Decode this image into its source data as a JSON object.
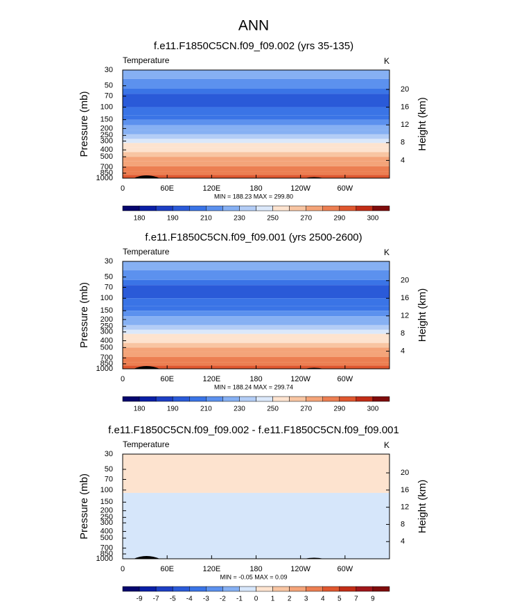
{
  "title": "ANN",
  "chart_data": [
    {
      "type": "contour",
      "title": "f.e11.F1850C5CN.f09_f09.002 (yrs 35-135)",
      "left_label": "Temperature",
      "right_label": "K",
      "ylabel": "Pressure (mb)",
      "y2label": "Height (km)",
      "log_y": true,
      "ylim": [
        1000,
        30
      ],
      "yticks": [
        30,
        50,
        70,
        100,
        150,
        200,
        250,
        300,
        400,
        500,
        700,
        850,
        1000
      ],
      "y2ticks": [
        4,
        8,
        12,
        16,
        20
      ],
      "xlim": [
        0,
        360
      ],
      "xticks": [
        0,
        {
          "value": 60,
          "label": "60E"
        },
        {
          "value": 120,
          "label": "120E"
        },
        180,
        {
          "value": 240,
          "label": "120W"
        },
        {
          "value": 300,
          "label": "60W"
        }
      ],
      "stats": "MIN = 188.23  MAX = 299.80",
      "pressure_edges": [
        30,
        40,
        55,
        65,
        100,
        130,
        150,
        180,
        210,
        240,
        280,
        320,
        370,
        430,
        500,
        580,
        680,
        800,
        900,
        1000
      ],
      "values": [
        226,
        218,
        205,
        199,
        203,
        209,
        216,
        222,
        228,
        234,
        243,
        251,
        258,
        264,
        270,
        276,
        282,
        287,
        292
      ],
      "levels": [
        180,
        185,
        190,
        200,
        210,
        220,
        230,
        240,
        250,
        260,
        270,
        280,
        290,
        295,
        300
      ],
      "tick_levels": [
        180,
        190,
        210,
        230,
        250,
        270,
        290,
        300
      ],
      "colors": [
        "#06066e",
        "#0a1fa6",
        "#1d3fc4",
        "#2a5ad8",
        "#3a74e6",
        "#5c91ee",
        "#86b0f3",
        "#b3cdf6",
        "#dbe8fa",
        "#fde3cf",
        "#f8c5a2",
        "#f4a479",
        "#ec7f52",
        "#df572f",
        "#c22d17",
        "#7f0c0c"
      ]
    },
    {
      "type": "contour",
      "title": "f.e11.F1850C5CN.f09_f09.001 (yrs 2500-2600)",
      "left_label": "Temperature",
      "right_label": "K",
      "ylabel": "Pressure (mb)",
      "y2label": "Height (km)",
      "log_y": true,
      "ylim": [
        1000,
        30
      ],
      "yticks": [
        30,
        50,
        70,
        100,
        150,
        200,
        250,
        300,
        400,
        500,
        700,
        850,
        1000
      ],
      "y2ticks": [
        4,
        8,
        12,
        16,
        20
      ],
      "xlim": [
        0,
        360
      ],
      "xticks": [
        0,
        {
          "value": 60,
          "label": "60E"
        },
        {
          "value": 120,
          "label": "120E"
        },
        180,
        {
          "value": 240,
          "label": "120W"
        },
        {
          "value": 300,
          "label": "60W"
        }
      ],
      "stats": "MIN = 188.24  MAX = 299.74",
      "pressure_edges": [
        30,
        40,
        55,
        65,
        100,
        130,
        150,
        180,
        210,
        240,
        280,
        320,
        370,
        430,
        500,
        580,
        680,
        800,
        900,
        1000
      ],
      "values": [
        226,
        218,
        205,
        199,
        203,
        209,
        216,
        222,
        228,
        234,
        243,
        251,
        258,
        264,
        270,
        276,
        282,
        287,
        292
      ],
      "levels": [
        180,
        185,
        190,
        200,
        210,
        220,
        230,
        240,
        250,
        260,
        270,
        280,
        290,
        295,
        300
      ],
      "tick_levels": [
        180,
        190,
        210,
        230,
        250,
        270,
        290,
        300
      ],
      "colors": [
        "#06066e",
        "#0a1fa6",
        "#1d3fc4",
        "#2a5ad8",
        "#3a74e6",
        "#5c91ee",
        "#86b0f3",
        "#b3cdf6",
        "#dbe8fa",
        "#fde3cf",
        "#f8c5a2",
        "#f4a479",
        "#ec7f52",
        "#df572f",
        "#c22d17",
        "#7f0c0c"
      ]
    },
    {
      "type": "contour",
      "title": "f.e11.F1850C5CN.f09_f09.002 - f.e11.F1850C5CN.f09_f09.001",
      "left_label": "Temperature",
      "right_label": "K",
      "ylabel": "Pressure (mb)",
      "y2label": "Height (km)",
      "log_y": true,
      "ylim": [
        1000,
        30
      ],
      "yticks": [
        30,
        50,
        70,
        100,
        150,
        200,
        250,
        300,
        400,
        500,
        700,
        850,
        1000
      ],
      "y2ticks": [
        4,
        8,
        12,
        16,
        20
      ],
      "xlim": [
        0,
        360
      ],
      "xticks": [
        0,
        {
          "value": 60,
          "label": "60E"
        },
        {
          "value": 120,
          "label": "120E"
        },
        180,
        {
          "value": 240,
          "label": "120W"
        },
        {
          "value": 300,
          "label": "60W"
        }
      ],
      "stats": "MIN = -0.05  MAX =  0.09",
      "pressure_edges": [
        30,
        110,
        1000
      ],
      "values": [
        0.02,
        -0.02
      ],
      "levels": [
        -9,
        -7,
        -5,
        -4,
        -3,
        -2,
        -1,
        0,
        1,
        2,
        3,
        4,
        5,
        7,
        9
      ],
      "tick_levels": [
        -9,
        -7,
        -5,
        -4,
        -3,
        -2,
        -1,
        0,
        1,
        2,
        3,
        4,
        5,
        7,
        9
      ],
      "colors": [
        "#06066e",
        "#0a1fa6",
        "#1d3fc4",
        "#2a5ad8",
        "#3a74e6",
        "#5c91ee",
        "#86b0f3",
        "#d6e6fa",
        "#fde3cf",
        "#f8c5a2",
        "#f4a479",
        "#ec7f52",
        "#df572f",
        "#c22d17",
        "#a0161a",
        "#7f0c0c"
      ]
    }
  ]
}
